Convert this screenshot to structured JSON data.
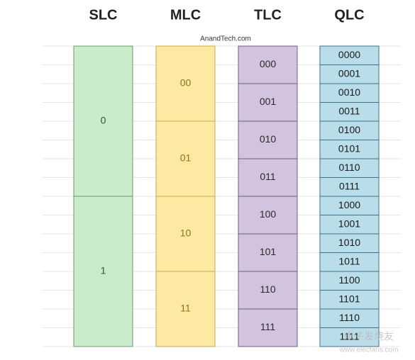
{
  "source": "AnandTech.com",
  "columns": [
    {
      "title": "SLC",
      "cells": [
        "0",
        "1"
      ]
    },
    {
      "title": "MLC",
      "cells": [
        "00",
        "01",
        "10",
        "11"
      ]
    },
    {
      "title": "TLC",
      "cells": [
        "000",
        "001",
        "010",
        "011",
        "100",
        "101",
        "110",
        "111"
      ]
    },
    {
      "title": "QLC",
      "cells": [
        "0000",
        "0001",
        "0010",
        "0011",
        "0100",
        "0101",
        "0110",
        "0111",
        "1000",
        "1001",
        "1010",
        "1011",
        "1100",
        "1101",
        "1110",
        "1111"
      ]
    }
  ],
  "watermark": {
    "name": "电子发烧友",
    "url": "www.elecfans.com"
  }
}
